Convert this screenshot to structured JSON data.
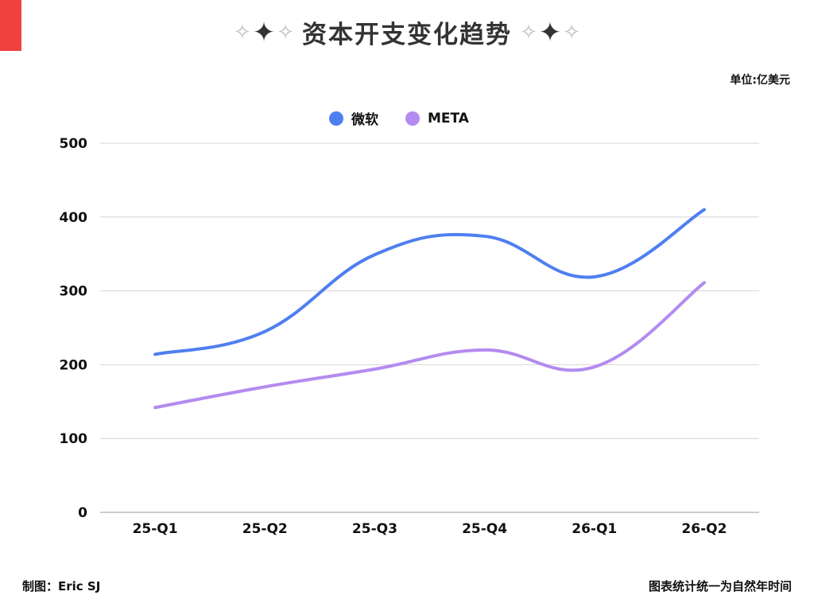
{
  "title": "资本开支变化趋势",
  "unit_label": "单位:亿美元",
  "footer": {
    "credit": "制图：Eric SJ",
    "note": "图表统计统一为自然年时间"
  },
  "colors": {
    "accent_red": "#f0413e",
    "series_microsoft": "#4f7fef",
    "series_meta": "#b38bf0",
    "grid": "#d6d6d6"
  },
  "icons": [
    "sparkle-outline-icon",
    "sparkle-solid-icon"
  ],
  "chart_data": {
    "type": "line",
    "title": "资本开支变化趋势",
    "ylabel": "",
    "xlabel": "",
    "categories": [
      "25-Q1",
      "25-Q2",
      "25-Q3",
      "25-Q4",
      "26-Q1",
      "26-Q2"
    ],
    "series": [
      {
        "name": "微软",
        "values": [
          214,
          245,
          349,
          374,
          319,
          410
        ]
      },
      {
        "name": "META",
        "values": [
          142,
          170,
          194,
          220,
          197,
          311
        ]
      }
    ],
    "ylim": [
      0,
      500
    ],
    "yticks": [
      0,
      100,
      200,
      300,
      400,
      500
    ],
    "grid": true,
    "legend_position": "top-center",
    "smooth": true
  }
}
